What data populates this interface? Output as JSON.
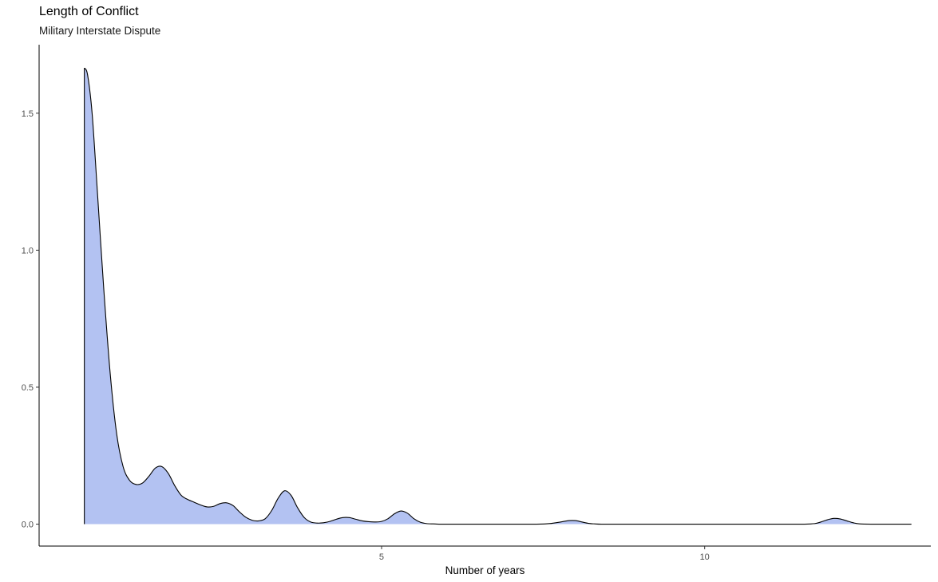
{
  "chart_data": {
    "type": "area",
    "title": "Length of Conflict",
    "subtitle": "Military Interstate Dispute",
    "xlabel": "Number of years",
    "ylabel": "",
    "xlim": [
      -0.3,
      13.5
    ],
    "ylim": [
      -0.08,
      1.75
    ],
    "x_ticks": [
      5,
      10
    ],
    "y_ticks": [
      0.0,
      0.5,
      1.0,
      1.5
    ],
    "y_tick_labels": [
      "0.0",
      "0.5",
      "1.0",
      "1.5"
    ],
    "grid": false,
    "fill_color": "#b3c2f2",
    "line_color": "#000000",
    "series": [
      {
        "x": [
          0.4,
          0.45,
          0.52,
          0.6,
          0.7,
          0.8,
          0.9,
          1.0,
          1.1,
          1.2,
          1.3,
          1.4,
          1.5,
          1.6,
          1.7,
          1.8,
          1.9,
          2.0,
          2.1,
          2.2,
          2.3,
          2.4,
          2.5,
          2.6,
          2.7,
          2.8,
          2.9,
          3.0,
          3.1,
          3.2,
          3.3,
          3.4,
          3.5,
          3.6,
          3.7,
          3.8,
          3.9,
          4.0,
          4.1,
          4.2,
          4.3,
          4.4,
          4.5,
          4.6,
          4.7,
          4.8,
          4.9,
          5.0,
          5.1,
          5.2,
          5.3,
          5.4,
          5.5,
          5.6,
          5.7,
          5.8,
          5.9,
          6.0,
          6.1,
          6.2,
          6.3,
          6.4,
          6.5,
          6.6,
          7.0,
          7.4,
          7.6,
          7.8,
          7.9,
          8.0,
          8.1,
          8.2,
          8.3,
          8.4,
          8.6,
          9.0,
          10.0,
          11.0,
          11.5,
          11.7,
          11.8,
          11.9,
          12.0,
          12.1,
          12.2,
          12.3,
          12.4,
          12.6,
          13.0,
          13.2
        ],
        "y": [
          1.665,
          1.64,
          1.5,
          1.22,
          0.86,
          0.55,
          0.33,
          0.21,
          0.16,
          0.145,
          0.15,
          0.175,
          0.205,
          0.21,
          0.185,
          0.14,
          0.105,
          0.09,
          0.08,
          0.07,
          0.063,
          0.065,
          0.075,
          0.078,
          0.068,
          0.045,
          0.025,
          0.014,
          0.012,
          0.02,
          0.05,
          0.095,
          0.122,
          0.105,
          0.06,
          0.025,
          0.008,
          0.004,
          0.005,
          0.01,
          0.018,
          0.024,
          0.024,
          0.018,
          0.012,
          0.009,
          0.008,
          0.01,
          0.02,
          0.038,
          0.048,
          0.04,
          0.02,
          0.007,
          0.002,
          0.001,
          0.0,
          0.0,
          0.0,
          0.0,
          0.0,
          0.0,
          0.0,
          0.0,
          0.0,
          0.0,
          0.002,
          0.009,
          0.013,
          0.013,
          0.008,
          0.003,
          0.001,
          0.0,
          0.0,
          0.0,
          0.0,
          0.0,
          0.0,
          0.002,
          0.008,
          0.016,
          0.021,
          0.019,
          0.012,
          0.005,
          0.001,
          0.0,
          0.0,
          0.0
        ]
      }
    ]
  }
}
